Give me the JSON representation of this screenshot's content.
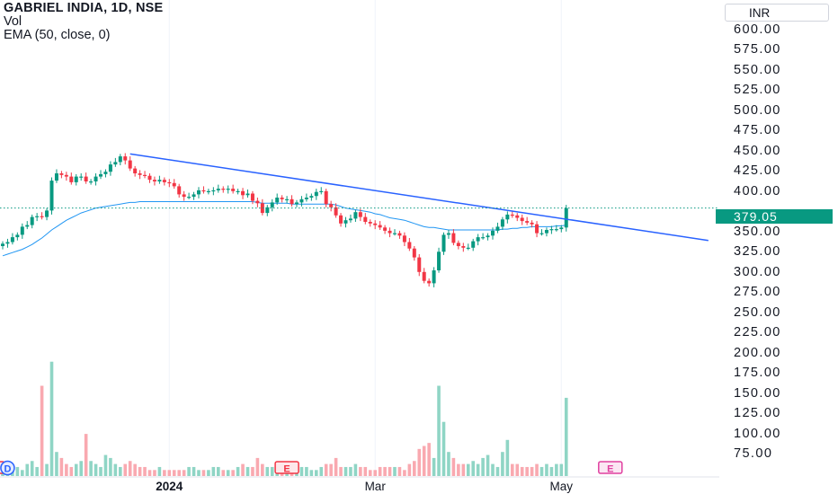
{
  "legend": {
    "title": "GABRIEL INDIA, 1D, NSE",
    "vol_label": "Vol",
    "ema_label": "EMA (50, close, 0)"
  },
  "currency": "INR",
  "last_price": "379.05",
  "chart_data": {
    "type": "candlestick",
    "price_axis": {
      "ticks": [
        "600.00",
        "575.00",
        "550.00",
        "525.00",
        "500.00",
        "475.00",
        "450.00",
        "425.00",
        "400.00",
        "350.00",
        "325.00",
        "300.00",
        "275.00",
        "250.00",
        "225.00",
        "200.00",
        "175.00",
        "150.00",
        "125.00",
        "100.00",
        "75.00"
      ],
      "range": [
        65,
        612
      ]
    },
    "time_axis": {
      "labels": [
        {
          "text": "2024",
          "index": 34,
          "bold": true
        },
        {
          "text": "Mar",
          "index": 76,
          "bold": false
        },
        {
          "text": "May",
          "index": 114,
          "bold": false
        }
      ],
      "count": 116
    },
    "closes": [
      335,
      337,
      343,
      346,
      356,
      358,
      368,
      369,
      368,
      376,
      413,
      422,
      420,
      418,
      411,
      418,
      418,
      412,
      412,
      418,
      421,
      424,
      433,
      436,
      443,
      438,
      428,
      422,
      420,
      419,
      414,
      412,
      414,
      411,
      410,
      406,
      396,
      393,
      393,
      396,
      401,
      400,
      400,
      401,
      403,
      402,
      403,
      400,
      400,
      395,
      397,
      388,
      385,
      373,
      380,
      386,
      392,
      390,
      390,
      384,
      386,
      390,
      392,
      394,
      399,
      400,
      384,
      380,
      370,
      360,
      364,
      366,
      374,
      368,
      362,
      360,
      358,
      355,
      351,
      348,
      348,
      345,
      337,
      329,
      318,
      300,
      289,
      286,
      302,
      325,
      346,
      348,
      336,
      332,
      330,
      330,
      338,
      343,
      343,
      345,
      351,
      356,
      365,
      371,
      370,
      367,
      363,
      361,
      359,
      348,
      348,
      352,
      353,
      353,
      355,
      379
    ],
    "ema": [
      320,
      322,
      324,
      326,
      328,
      331,
      334,
      338,
      342,
      347,
      352,
      356,
      360,
      364,
      367,
      370,
      373,
      375,
      377,
      379,
      380,
      381,
      382,
      383,
      384,
      385,
      386,
      386,
      387,
      387,
      387,
      387,
      387,
      387,
      387,
      387,
      387,
      387,
      387,
      387,
      387,
      387,
      387,
      387,
      387,
      387,
      387,
      387,
      387,
      387,
      387,
      387,
      386,
      385,
      385,
      385,
      385,
      385,
      385,
      384,
      384,
      384,
      384,
      384,
      384,
      384,
      384,
      384,
      383,
      381,
      379,
      378,
      377,
      376,
      375,
      374,
      372,
      371,
      369,
      367,
      366,
      365,
      364,
      362,
      360,
      358,
      356,
      355,
      355,
      354,
      353,
      352,
      352,
      352,
      352,
      352,
      352,
      352,
      352,
      352,
      352,
      352,
      353,
      353,
      354,
      354,
      355,
      355,
      356,
      356,
      356,
      356,
      356,
      357,
      357,
      358
    ],
    "volumes": [
      2,
      2,
      3,
      3,
      2,
      4,
      5,
      3,
      30,
      4,
      38,
      8,
      6,
      4,
      3,
      4,
      5,
      14,
      5,
      4,
      3,
      7,
      6,
      4,
      3,
      4,
      5,
      4,
      3,
      3,
      2,
      2,
      3,
      2,
      2,
      2,
      2,
      2,
      3,
      3,
      2,
      2,
      2,
      3,
      3,
      2,
      2,
      2,
      3,
      4,
      3,
      3,
      6,
      4,
      3,
      3,
      2,
      2,
      2,
      3,
      3,
      3,
      3,
      2,
      2,
      3,
      4,
      4,
      6,
      3,
      3,
      3,
      4,
      3,
      3,
      2,
      2,
      3,
      3,
      3,
      3,
      3,
      2,
      4,
      5,
      9,
      10,
      11,
      6,
      30,
      18,
      8,
      6,
      4,
      4,
      4,
      5,
      4,
      6,
      7,
      4,
      3,
      8,
      12,
      4,
      4,
      3,
      3,
      3,
      4,
      3,
      4,
      3,
      4,
      4,
      26
    ],
    "trendline": {
      "from_index": 26,
      "from_price": 446,
      "to_index": 144,
      "to_price": 339
    },
    "earnings_markers": [
      {
        "label": "E",
        "index": -2
      },
      {
        "label": "D",
        "index": 1
      },
      {
        "label": "E",
        "index": 58
      },
      {
        "label": "E",
        "index": 124
      }
    ],
    "colors": {
      "up": "#089981",
      "down": "#f23645",
      "ema": "#2196f3",
      "trend": "#2962ff",
      "last_price": "#089981",
      "earnings": "#f23645",
      "dividend": "#2962ff",
      "earnings_next": "#e040a0"
    }
  }
}
